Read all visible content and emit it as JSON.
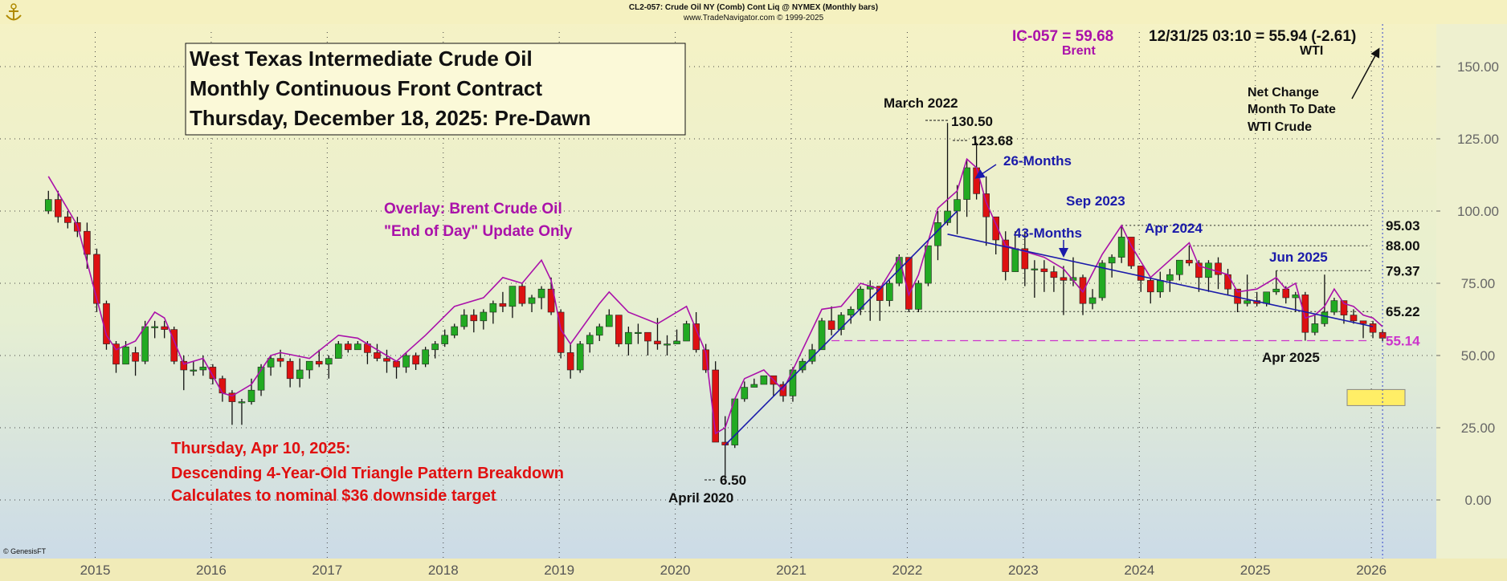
{
  "header": {
    "line1": "CL2-057:  Crude Oil NY (Comb) Cont Liq @ NYMEX  (Monthly bars)",
    "line2": "www.TradeNavigator.com © 1999-2025",
    "copyright": "© GenesisFT"
  },
  "quote": {
    "brent_value": "IC-057 = 59.68",
    "brent_label": "Brent",
    "wti_value": "12/31/25 03:10 = 55.94 (-2.61)",
    "wti_label": "WTI"
  },
  "title_box": {
    "line1": "West Texas Intermediate Crude Oil",
    "line2": "Monthly Continuous Front Contract",
    "line3": "Thursday, December 18, 2025: Pre-Dawn"
  },
  "overlay_note": {
    "line1": "Overlay: Brent Crude Oil",
    "line2": "\"End of Day\" Update Only"
  },
  "breakdown_note": {
    "line1": "Thursday, Apr 10, 2025:",
    "line2": "Descending 4-Year-Old Triangle Pattern Breakdown",
    "line3": "Calculates to nominal $36 downside target"
  },
  "net_change_note": {
    "line1": "Net Change",
    "line2": "Month To Date",
    "line3": "WTI Crude"
  },
  "annotations": {
    "march_2022": "March 2022",
    "high_13050": "130.50",
    "high_12368": "123.68",
    "months_26": "26-Months",
    "sep_2023": "Sep 2023",
    "months_43": "43-Months",
    "apr_2024": "Apr 2024",
    "jun_2025": "Jun 2025",
    "apr_2025": "Apr 2025",
    "low_650": "6.50",
    "april_2020": "April 2020"
  },
  "level_labels": [
    "95.03",
    "88.00",
    "79.37",
    "65.22",
    "55.14"
  ],
  "colors": {
    "up": "#22aa22",
    "down": "#dd1111",
    "brent": "#aa11aa",
    "trend": "#1a1aaa",
    "support": "#cc33cc",
    "annot_blue": "#1a1aaa",
    "annot_red": "#e01010",
    "target_box": "#ffee66"
  },
  "chart_data": {
    "type": "candlestick",
    "title": "West Texas Intermediate Crude Oil Monthly Continuous Front Contract",
    "frequency": "monthly",
    "xlim": [
      "2014-04",
      "2026-04"
    ],
    "x_ticks": [
      "2015",
      "2016",
      "2017",
      "2018",
      "2019",
      "2020",
      "2021",
      "2022",
      "2023",
      "2024",
      "2025",
      "2026"
    ],
    "ylim": [
      -20,
      165
    ],
    "y_ticks": [
      0,
      25,
      50,
      75,
      100,
      125,
      150
    ],
    "y_tick_labels": [
      "0.00",
      "25.00",
      "50.00",
      "75.00",
      "100.00",
      "125.00",
      "150.00"
    ],
    "grid": true,
    "ohlc_fields": [
      "date",
      "open",
      "high",
      "low",
      "close"
    ],
    "wti_ohlc": [
      [
        "2014-06",
        100,
        107,
        99,
        104
      ],
      [
        "2014-07",
        104,
        107,
        96,
        98
      ],
      [
        "2014-08",
        98,
        100,
        94,
        96
      ],
      [
        "2014-09",
        96,
        98,
        91,
        93
      ],
      [
        "2014-10",
        93,
        96,
        80,
        85
      ],
      [
        "2014-11",
        85,
        87,
        65,
        68
      ],
      [
        "2014-12",
        68,
        69,
        52,
        54
      ],
      [
        "2015-01",
        54,
        55,
        44,
        47
      ],
      [
        "2015-02",
        47,
        55,
        48,
        53
      ],
      [
        "2015-03",
        51,
        53,
        43,
        48
      ],
      [
        "2015-04",
        48,
        62,
        47,
        60
      ],
      [
        "2015-05",
        60,
        62,
        56,
        60
      ],
      [
        "2015-06",
        60,
        62,
        56,
        59
      ],
      [
        "2015-07",
        59,
        60,
        47,
        48
      ],
      [
        "2015-08",
        48,
        50,
        38,
        45
      ],
      [
        "2015-09",
        45,
        48,
        43,
        45
      ],
      [
        "2015-10",
        45,
        50,
        43,
        46
      ],
      [
        "2015-11",
        46,
        47,
        40,
        42
      ],
      [
        "2015-12",
        42,
        43,
        34,
        37
      ],
      [
        "2016-01",
        37,
        38,
        26,
        34
      ],
      [
        "2016-02",
        34,
        35,
        26,
        34
      ],
      [
        "2016-03",
        34,
        42,
        33,
        38
      ],
      [
        "2016-04",
        38,
        47,
        36,
        46
      ],
      [
        "2016-05",
        46,
        50,
        43,
        49
      ],
      [
        "2016-06",
        49,
        52,
        46,
        48
      ],
      [
        "2016-07",
        48,
        49,
        39,
        42
      ],
      [
        "2016-08",
        42,
        49,
        39,
        45
      ],
      [
        "2016-09",
        45,
        48,
        42,
        48
      ],
      [
        "2016-10",
        48,
        52,
        46,
        47
      ],
      [
        "2016-11",
        47,
        50,
        42,
        49
      ],
      [
        "2016-12",
        49,
        55,
        49,
        54
      ],
      [
        "2017-01",
        54,
        55,
        51,
        52
      ],
      [
        "2017-02",
        52,
        55,
        52,
        54
      ],
      [
        "2017-03",
        54,
        55,
        47,
        51
      ],
      [
        "2017-04",
        51,
        54,
        48,
        49
      ],
      [
        "2017-05",
        49,
        52,
        44,
        48
      ],
      [
        "2017-06",
        48,
        48,
        42,
        46
      ],
      [
        "2017-07",
        46,
        51,
        44,
        50
      ],
      [
        "2017-08",
        50,
        51,
        45,
        47
      ],
      [
        "2017-09",
        47,
        53,
        46,
        52
      ],
      [
        "2017-10",
        52,
        55,
        49,
        54
      ],
      [
        "2017-11",
        54,
        59,
        53,
        57
      ],
      [
        "2017-12",
        57,
        61,
        56,
        60
      ],
      [
        "2018-01",
        60,
        66,
        59,
        64
      ],
      [
        "2018-02",
        64,
        66,
        58,
        62
      ],
      [
        "2018-03",
        62,
        66,
        59,
        65
      ],
      [
        "2018-04",
        65,
        69,
        61,
        68
      ],
      [
        "2018-05",
        68,
        72,
        65,
        67
      ],
      [
        "2018-06",
        67,
        74,
        63,
        74
      ],
      [
        "2018-07",
        74,
        75,
        67,
        68
      ],
      [
        "2018-08",
        68,
        71,
        65,
        70
      ],
      [
        "2018-09",
        70,
        74,
        66,
        73
      ],
      [
        "2018-10",
        73,
        77,
        64,
        65
      ],
      [
        "2018-11",
        65,
        66,
        49,
        51
      ],
      [
        "2018-12",
        51,
        54,
        42,
        45
      ],
      [
        "2019-01",
        45,
        55,
        44,
        54
      ],
      [
        "2019-02",
        54,
        58,
        51,
        57
      ],
      [
        "2019-03",
        57,
        61,
        55,
        60
      ],
      [
        "2019-04",
        60,
        66,
        60,
        64
      ],
      [
        "2019-05",
        64,
        64,
        53,
        54
      ],
      [
        "2019-06",
        54,
        60,
        50,
        58
      ],
      [
        "2019-07",
        58,
        61,
        54,
        58
      ],
      [
        "2019-08",
        58,
        58,
        50,
        55
      ],
      [
        "2019-09",
        55,
        63,
        52,
        54
      ],
      [
        "2019-10",
        54,
        57,
        50,
        54
      ],
      [
        "2019-11",
        54,
        59,
        54,
        55
      ],
      [
        "2019-12",
        55,
        62,
        55,
        61
      ],
      [
        "2020-01",
        61,
        65,
        51,
        52
      ],
      [
        "2020-02",
        52,
        54,
        44,
        45
      ],
      [
        "2020-03",
        45,
        48,
        20,
        20
      ],
      [
        "2020-04",
        20,
        29,
        6.5,
        19
      ],
      [
        "2020-05",
        19,
        35,
        18,
        35
      ],
      [
        "2020-06",
        35,
        41,
        34,
        39
      ],
      [
        "2020-07",
        39,
        42,
        39,
        40
      ],
      [
        "2020-08",
        40,
        43,
        40,
        43
      ],
      [
        "2020-09",
        43,
        43,
        36,
        40
      ],
      [
        "2020-10",
        40,
        41,
        34,
        36
      ],
      [
        "2020-11",
        36,
        46,
        34,
        45
      ],
      [
        "2020-12",
        45,
        49,
        44,
        48
      ],
      [
        "2021-01",
        48,
        54,
        47,
        52
      ],
      [
        "2021-02",
        52,
        63,
        52,
        62
      ],
      [
        "2021-03",
        62,
        67,
        57,
        59
      ],
      [
        "2021-04",
        59,
        65,
        57,
        64
      ],
      [
        "2021-05",
        64,
        67,
        61,
        66
      ],
      [
        "2021-06",
        66,
        74,
        64,
        73
      ],
      [
        "2021-07",
        73,
        76,
        62,
        74
      ],
      [
        "2021-08",
        74,
        74,
        62,
        69
      ],
      [
        "2021-09",
        69,
        76,
        67,
        75
      ],
      [
        "2021-10",
        75,
        85,
        74,
        84
      ],
      [
        "2021-11",
        84,
        84,
        65,
        66
      ],
      [
        "2021-12",
        66,
        76,
        65,
        75
      ],
      [
        "2022-01",
        75,
        88,
        74,
        88
      ],
      [
        "2022-02",
        88,
        100,
        83,
        96
      ],
      [
        "2022-03",
        96,
        130.5,
        95,
        100
      ],
      [
        "2022-04",
        100,
        109,
        92,
        104
      ],
      [
        "2022-05",
        104,
        118,
        98,
        115
      ],
      [
        "2022-06",
        115,
        123.68,
        104,
        106
      ],
      [
        "2022-07",
        106,
        112,
        88,
        98
      ],
      [
        "2022-08",
        98,
        98,
        85,
        90
      ],
      [
        "2022-09",
        90,
        93,
        76,
        79
      ],
      [
        "2022-10",
        79,
        93,
        79,
        87
      ],
      [
        "2022-11",
        87,
        93,
        74,
        80
      ],
      [
        "2022-12",
        80,
        83,
        70,
        80
      ],
      [
        "2023-01",
        80,
        83,
        72,
        79
      ],
      [
        "2023-02",
        79,
        81,
        72,
        77
      ],
      [
        "2023-03",
        77,
        81,
        64,
        76
      ],
      [
        "2023-04",
        76,
        84,
        74,
        77
      ],
      [
        "2023-05",
        77,
        78,
        64,
        68
      ],
      [
        "2023-06",
        68,
        73,
        66,
        70
      ],
      [
        "2023-07",
        70,
        83,
        69,
        82
      ],
      [
        "2023-08",
        82,
        85,
        77,
        84
      ],
      [
        "2023-09",
        84,
        95.03,
        82,
        91
      ],
      [
        "2023-10",
        91,
        90,
        80,
        81
      ],
      [
        "2023-11",
        81,
        80,
        72,
        76
      ],
      [
        "2023-12",
        76,
        77,
        68,
        72
      ],
      [
        "2024-01",
        72,
        79,
        70,
        76
      ],
      [
        "2024-02",
        76,
        80,
        72,
        78
      ],
      [
        "2024-03",
        78,
        83,
        76,
        83
      ],
      [
        "2024-04",
        83,
        88,
        81,
        82
      ],
      [
        "2024-05",
        82,
        83,
        72,
        77
      ],
      [
        "2024-06",
        77,
        83,
        72,
        82
      ],
      [
        "2024-07",
        82,
        84,
        73,
        78
      ],
      [
        "2024-08",
        78,
        80,
        71,
        73
      ],
      [
        "2024-09",
        73,
        73,
        65,
        68
      ],
      [
        "2024-10",
        68,
        78,
        67,
        69
      ],
      [
        "2024-11",
        69,
        72,
        67,
        68
      ],
      [
        "2024-12",
        68,
        72,
        67,
        72
      ],
      [
        "2025-01",
        72,
        79.37,
        71,
        73
      ],
      [
        "2025-02",
        73,
        74,
        68,
        70
      ],
      [
        "2025-03",
        70,
        72,
        65,
        71
      ],
      [
        "2025-04",
        71,
        72,
        55.14,
        58
      ],
      [
        "2025-05",
        58,
        64,
        57,
        61
      ],
      [
        "2025-06",
        61,
        78,
        60,
        65
      ],
      [
        "2025-07",
        65,
        70,
        64,
        69
      ],
      [
        "2025-08",
        69,
        69,
        61,
        64
      ],
      [
        "2025-09",
        64,
        66,
        61,
        62
      ],
      [
        "2025-10",
        62,
        62,
        56,
        61
      ],
      [
        "2025-11",
        61,
        62,
        56,
        58
      ],
      [
        "2025-12",
        58,
        59,
        55,
        56
      ]
    ],
    "brent_overlay": [
      [
        "2014-06",
        112
      ],
      [
        "2014-09",
        95
      ],
      [
        "2014-12",
        57
      ],
      [
        "2015-01",
        52
      ],
      [
        "2015-03",
        55
      ],
      [
        "2015-05",
        65
      ],
      [
        "2015-06",
        63
      ],
      [
        "2015-08",
        47
      ],
      [
        "2015-10",
        49
      ],
      [
        "2015-12",
        37
      ],
      [
        "2016-01",
        36
      ],
      [
        "2016-03",
        40
      ],
      [
        "2016-05",
        50
      ],
      [
        "2016-06",
        51
      ],
      [
        "2016-09",
        49
      ],
      [
        "2016-12",
        57
      ],
      [
        "2017-02",
        56
      ],
      [
        "2017-06",
        48
      ],
      [
        "2017-09",
        57
      ],
      [
        "2017-12",
        67
      ],
      [
        "2018-03",
        70
      ],
      [
        "2018-05",
        77
      ],
      [
        "2018-07",
        75
      ],
      [
        "2018-09",
        83
      ],
      [
        "2018-10",
        76
      ],
      [
        "2018-11",
        59
      ],
      [
        "2018-12",
        54
      ],
      [
        "2019-03",
        68
      ],
      [
        "2019-04",
        72
      ],
      [
        "2019-06",
        65
      ],
      [
        "2019-09",
        61
      ],
      [
        "2019-12",
        67
      ],
      [
        "2020-01",
        59
      ],
      [
        "2020-02",
        51
      ],
      [
        "2020-03",
        23
      ],
      [
        "2020-04",
        25
      ],
      [
        "2020-05",
        35
      ],
      [
        "2020-06",
        42
      ],
      [
        "2020-08",
        45
      ],
      [
        "2020-10",
        38
      ],
      [
        "2020-12",
        52
      ],
      [
        "2021-02",
        66
      ],
      [
        "2021-04",
        67
      ],
      [
        "2021-06",
        75
      ],
      [
        "2021-08",
        73
      ],
      [
        "2021-10",
        84
      ],
      [
        "2021-11",
        71
      ],
      [
        "2021-12",
        78
      ],
      [
        "2022-02",
        101
      ],
      [
        "2022-04",
        107
      ],
      [
        "2022-05",
        118
      ],
      [
        "2022-06",
        115
      ],
      [
        "2022-07",
        103
      ],
      [
        "2022-09",
        88
      ],
      [
        "2022-11",
        86
      ],
      [
        "2023-01",
        84
      ],
      [
        "2023-03",
        80
      ],
      [
        "2023-05",
        72
      ],
      [
        "2023-07",
        85
      ],
      [
        "2023-09",
        95
      ],
      [
        "2023-10",
        88
      ],
      [
        "2023-12",
        77
      ],
      [
        "2024-02",
        83
      ],
      [
        "2024-04",
        89
      ],
      [
        "2024-05",
        81
      ],
      [
        "2024-08",
        78
      ],
      [
        "2024-09",
        72
      ],
      [
        "2024-11",
        73
      ],
      [
        "2025-01",
        77
      ],
      [
        "2025-02",
        73
      ],
      [
        "2025-03",
        75
      ],
      [
        "2025-04",
        63
      ],
      [
        "2025-05",
        64
      ],
      [
        "2025-06",
        67
      ],
      [
        "2025-07",
        73
      ],
      [
        "2025-08",
        68
      ],
      [
        "2025-09",
        67
      ],
      [
        "2025-10",
        64
      ],
      [
        "2025-11",
        63
      ],
      [
        "2025-12",
        60
      ]
    ],
    "trendlines": [
      {
        "name": "26-Months",
        "from": [
          "2020-04",
          19
        ],
        "to": [
          "2022-04",
          100
        ]
      },
      {
        "name": "43-Months",
        "from": [
          "2022-03",
          92
        ],
        "to": [
          "2025-11",
          60
        ]
      }
    ],
    "horizontal_levels": [
      95.03,
      88.0,
      79.37,
      65.22,
      55.14
    ],
    "downside_target": 36
  }
}
